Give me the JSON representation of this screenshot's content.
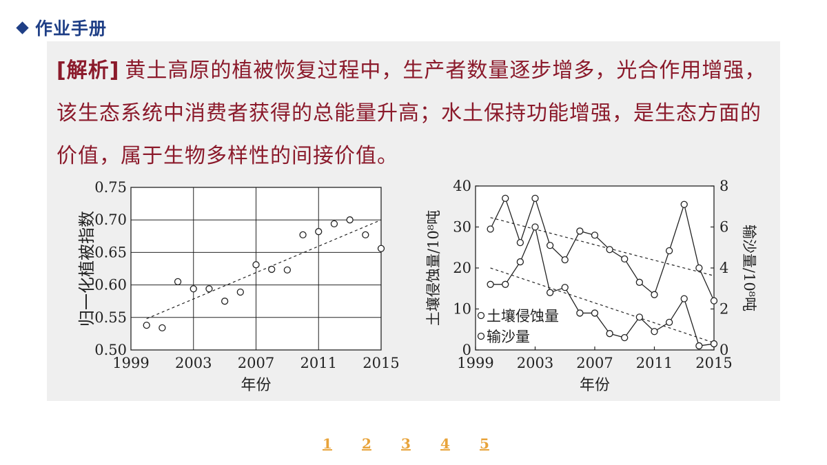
{
  "header": {
    "title": "作业手册"
  },
  "analysis": {
    "tag": "[解析]",
    "text": "黄土高原的植被恢复过程中，生产者数量逐步增多，光合作用增强，该生态系统中消费者获得的总能量升高；水土保持功能增强，是生态方面的价值，属于生物多样性的间接价值。"
  },
  "pagination": [
    "1",
    "2",
    "3",
    "4",
    "5"
  ],
  "colors": {
    "title": "#1f3f86",
    "analysis": "#8b1a2b",
    "pager": "#e8a33a",
    "panel": "#efefef"
  },
  "chart_data": [
    {
      "type": "scatter",
      "xlabel": "年份",
      "ylabel": "归一化植被指数",
      "xlim": [
        1999,
        2015
      ],
      "ylim": [
        0.5,
        0.75
      ],
      "xticks": [
        1999,
        2003,
        2007,
        2011,
        2015
      ],
      "yticks": [
        0.5,
        0.55,
        0.6,
        0.65,
        0.7,
        0.75
      ],
      "ytick_labels": [
        "0.50",
        "0.55",
        "0.60",
        "0.65",
        "0.70",
        "0.75"
      ],
      "grid": true,
      "points": [
        [
          2000,
          0.538
        ],
        [
          2001,
          0.534
        ],
        [
          2002,
          0.605
        ],
        [
          2003,
          0.594
        ],
        [
          2004,
          0.594
        ],
        [
          2005,
          0.575
        ],
        [
          2006,
          0.589
        ],
        [
          2007,
          0.631
        ],
        [
          2008,
          0.624
        ],
        [
          2009,
          0.623
        ],
        [
          2010,
          0.677
        ],
        [
          2011,
          0.682
        ],
        [
          2012,
          0.694
        ],
        [
          2013,
          0.7
        ],
        [
          2014,
          0.677
        ],
        [
          2015,
          0.656
        ]
      ],
      "trendline": [
        [
          2000,
          0.548
        ],
        [
          2015,
          0.7
        ]
      ]
    },
    {
      "type": "line",
      "xlabel": "年份",
      "ylabel": "土壤侵蚀量/10⁸吨",
      "y2label": "输沙量/10⁸吨",
      "xlim": [
        1999,
        2015
      ],
      "ylim": [
        0,
        40
      ],
      "y2lim": [
        0,
        8
      ],
      "xticks": [
        1999,
        2003,
        2007,
        2011,
        2015
      ],
      "yticks": [
        0,
        10,
        20,
        30,
        40
      ],
      "y2ticks": [
        0,
        2,
        4,
        6,
        8
      ],
      "grid": false,
      "series": [
        {
          "name": "土壤侵蚀量",
          "axis": "left",
          "values": [
            29.5,
            37,
            26.2,
            37,
            25.5,
            22,
            29,
            28,
            24.5,
            22.2,
            16.5,
            13.5,
            24.2,
            35.5,
            20,
            12
          ],
          "trendline": [
            [
              2000,
              32.3
            ],
            [
              2015,
              18.1
            ]
          ]
        },
        {
          "name": "输沙量",
          "axis": "right",
          "values": [
            3.2,
            3.2,
            4.3,
            6,
            2.8,
            3.05,
            1.8,
            1.8,
            0.8,
            0.6,
            1.6,
            0.9,
            1.35,
            2.5,
            0.2,
            0.3
          ],
          "trendline": [
            [
              2000,
              4.0
            ],
            [
              2015,
              0.35
            ]
          ]
        }
      ],
      "x": [
        2000,
        2001,
        2002,
        2003,
        2004,
        2005,
        2006,
        2007,
        2008,
        2009,
        2010,
        2011,
        2012,
        2013,
        2014,
        2015
      ],
      "legend": [
        "土壤侵蚀量",
        "输沙量"
      ]
    }
  ]
}
